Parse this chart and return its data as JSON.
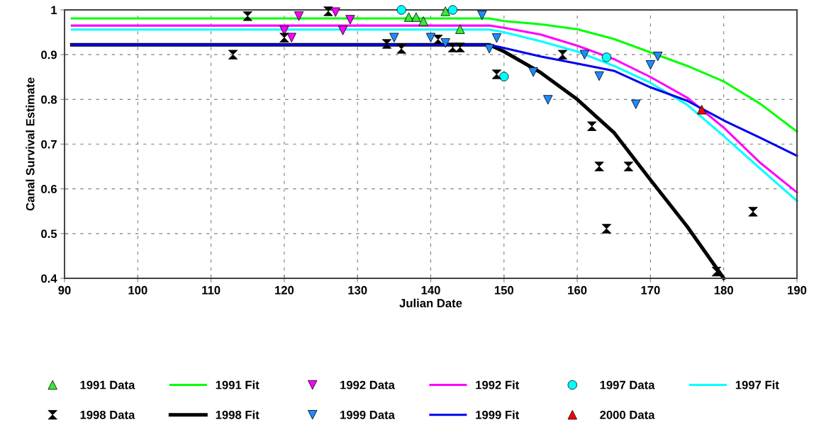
{
  "chart_data": {
    "type": "scatter",
    "xlabel": "Julian Date",
    "ylabel": "Canal Survival Estimate",
    "xlim": [
      90,
      190
    ],
    "ylim": [
      0.4,
      1
    ],
    "xticks": [
      90,
      100,
      110,
      120,
      130,
      140,
      150,
      160,
      170,
      180,
      190
    ],
    "yticks": [
      0.4,
      0.5,
      0.6,
      0.7,
      0.8,
      0.9,
      1
    ],
    "grid": true,
    "legend": "bottom",
    "series": [
      {
        "name": "1991 Data",
        "marker": "triangle",
        "color": "#33ee33",
        "x": [
          137,
          138,
          139,
          142,
          144
        ],
        "values": [
          0.984,
          0.984,
          0.975,
          0.997,
          0.957
        ]
      },
      {
        "name": "1991 Fit",
        "type": "line",
        "marker": "none",
        "color": "#00ff00",
        "x": [
          91,
          148,
          150,
          155,
          160,
          165,
          170,
          175,
          180,
          185,
          190
        ],
        "values": [
          0.981,
          0.981,
          0.975,
          0.968,
          0.957,
          0.935,
          0.905,
          0.875,
          0.84,
          0.79,
          0.728
        ]
      },
      {
        "name": "1992 Data",
        "marker": "triangle-down",
        "color": "#ff00ff",
        "x": [
          120,
          121,
          122,
          127,
          128,
          129
        ],
        "values": [
          0.954,
          0.938,
          0.986,
          0.995,
          0.954,
          0.978
        ]
      },
      {
        "name": "1992 Fit",
        "type": "line",
        "marker": "none",
        "color": "#ff00ff",
        "x": [
          91,
          148,
          150,
          155,
          160,
          165,
          170,
          175,
          180,
          185,
          190
        ],
        "values": [
          0.965,
          0.965,
          0.96,
          0.945,
          0.92,
          0.89,
          0.85,
          0.804,
          0.737,
          0.658,
          0.592
        ]
      },
      {
        "name": "1997 Data",
        "marker": "circle",
        "color": "#00ffff",
        "x": [
          136,
          143,
          150,
          164
        ],
        "values": [
          1.0,
          1.0,
          0.851,
          0.894
        ]
      },
      {
        "name": "1997 Fit",
        "type": "line",
        "marker": "none",
        "color": "#00ffff",
        "x": [
          91,
          148,
          150,
          155,
          160,
          165,
          170,
          175,
          180,
          185,
          190
        ],
        "values": [
          0.956,
          0.956,
          0.95,
          0.93,
          0.907,
          0.875,
          0.837,
          0.788,
          0.718,
          0.645,
          0.573
        ]
      },
      {
        "name": "1998 Data",
        "color": "#000000",
        "x": [
          113,
          115,
          120,
          126,
          134,
          136,
          141,
          143,
          144,
          149,
          158,
          162,
          163,
          164,
          167,
          179,
          184
        ],
        "values": [
          0.9,
          0.986,
          0.938,
          0.997,
          0.924,
          0.913,
          0.934,
          0.916,
          0.916,
          0.856,
          0.9,
          0.74,
          0.65,
          0.511,
          0.65,
          0.415,
          0.549
        ]
      },
      {
        "name": "1998 Fit",
        "type": "line",
        "marker": "none",
        "color": "#000000",
        "x": [
          91,
          148,
          150,
          155,
          160,
          165,
          170,
          175,
          180
        ],
        "values": [
          0.922,
          0.922,
          0.907,
          0.86,
          0.8,
          0.726,
          0.62,
          0.516,
          0.4
        ]
      },
      {
        "name": "1999 Data",
        "marker": "triangle-down",
        "color": "#1e8cff",
        "x": [
          135,
          140,
          142,
          147,
          148,
          149,
          154,
          156,
          161,
          163,
          168,
          170,
          171
        ],
        "values": [
          0.938,
          0.938,
          0.926,
          0.988,
          0.913,
          0.937,
          0.861,
          0.799,
          0.9,
          0.852,
          0.789,
          0.877,
          0.896
        ]
      },
      {
        "name": "1999 Fit",
        "type": "line",
        "marker": "none",
        "color": "#0000ee",
        "x": [
          91,
          148,
          150,
          155,
          160,
          165,
          170,
          175,
          180,
          185,
          190
        ],
        "values": [
          0.922,
          0.922,
          0.915,
          0.896,
          0.88,
          0.864,
          0.827,
          0.797,
          0.753,
          0.714,
          0.674
        ]
      },
      {
        "name": "2000 Data",
        "marker": "triangle",
        "color": "#ff0000",
        "x": [
          177
        ],
        "values": [
          0.777
        ]
      }
    ]
  }
}
